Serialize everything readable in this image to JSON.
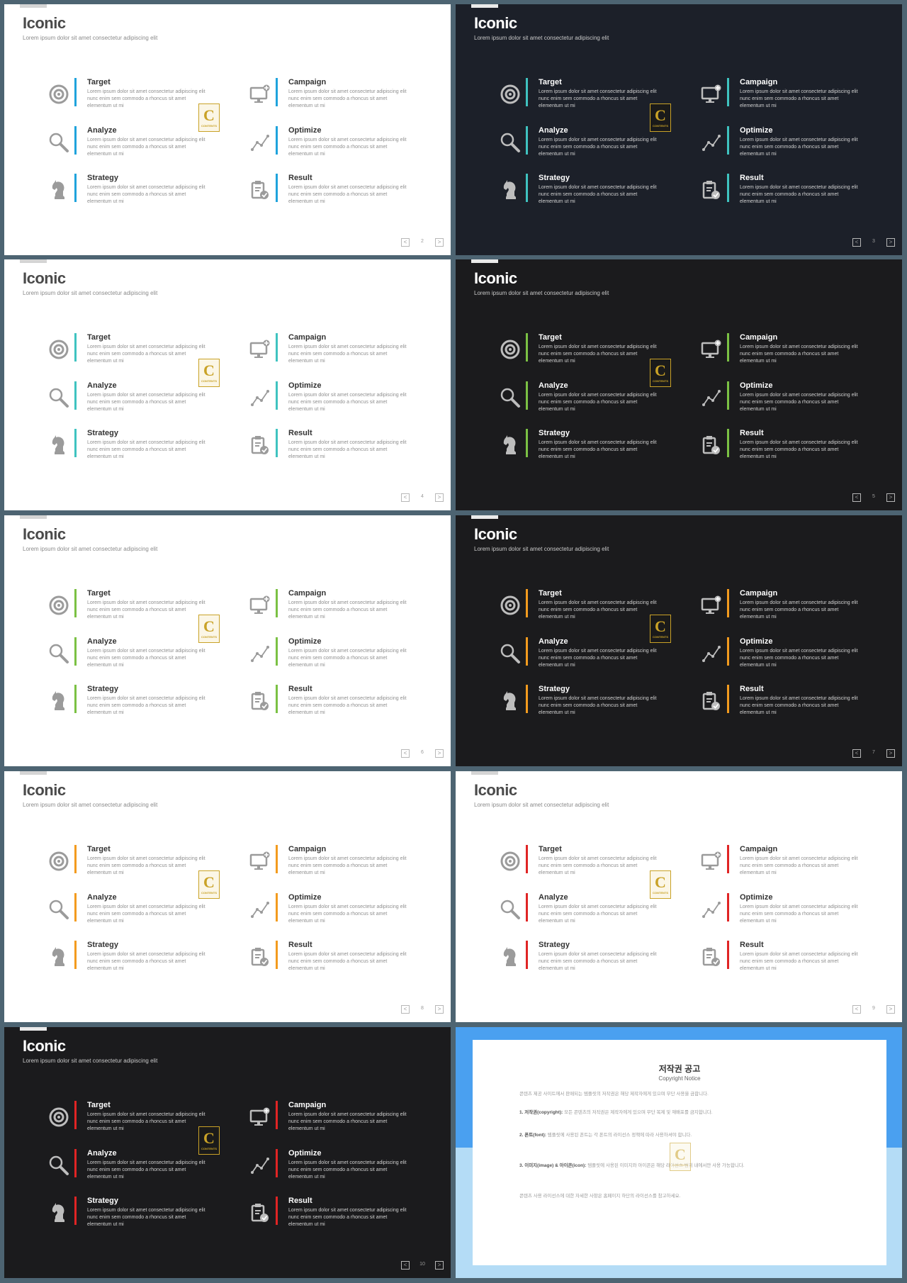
{
  "presentation": {
    "title": "Iconic",
    "subtitle": "Lorem ipsum dolor sit amet consectetur adipiscing elit"
  },
  "items": [
    {
      "key": "target",
      "title": "Target",
      "desc": "Lorem ipsum dolor sit amet consectetur adipiscing elit nunc enim sem commodo a rhoncus sit amet elementum ut mi",
      "icon": "target-icon"
    },
    {
      "key": "campaign",
      "title": "Campaign",
      "desc": "Lorem ipsum dolor sit amet consectetur adipiscing elit nunc enim sem commodo a rhoncus sit amet elementum ut mi",
      "icon": "monitor-plus-icon"
    },
    {
      "key": "analyze",
      "title": "Analyze",
      "desc": "Lorem ipsum dolor sit amet consectetur adipiscing elit nunc enim sem commodo a rhoncus sit amet elementum ut mi",
      "icon": "magnifier-icon"
    },
    {
      "key": "optimize",
      "title": "Optimize",
      "desc": "Lorem ipsum dolor sit amet consectetur adipiscing elit nunc enim sem commodo a rhoncus sit amet elementum ut mi",
      "icon": "trend-line-icon"
    },
    {
      "key": "strategy",
      "title": "Strategy",
      "desc": "Lorem ipsum dolor sit amet consectetur adipiscing elit nunc enim sem commodo a rhoncus sit amet elementum ut mi",
      "icon": "chess-knight-icon"
    },
    {
      "key": "result",
      "title": "Result",
      "desc": "Lorem ipsum dolor sit amet consectetur adipiscing elit nunc enim sem commodo a rhoncus sit amet elementum ut mi",
      "icon": "clipboard-check-icon"
    }
  ],
  "logo": {
    "letter": "C",
    "caption": "CONTENTS",
    "icon": "contents-logo-icon"
  },
  "nav": {
    "prev_glyph": "<",
    "next_glyph": ">"
  },
  "slides": [
    {
      "page": "2",
      "theme": "white",
      "accent": "#1fa3dc"
    },
    {
      "page": "3",
      "theme": "navy",
      "accent": "#3fc3c0"
    },
    {
      "page": "4",
      "theme": "white",
      "accent": "#3fc3c0"
    },
    {
      "page": "5",
      "theme": "black",
      "accent": "#7bc144"
    },
    {
      "page": "6",
      "theme": "white",
      "accent": "#7bc144"
    },
    {
      "page": "7",
      "theme": "black",
      "accent": "#f39b1e"
    },
    {
      "page": "8",
      "theme": "white",
      "accent": "#f39b1e"
    },
    {
      "page": "9",
      "theme": "white",
      "accent": "#e02424"
    },
    {
      "page": "10",
      "theme": "black",
      "accent": "#e02424"
    }
  ],
  "copyright": {
    "title": "저작권 공고",
    "subtitle": "Copyright Notice",
    "background_top": "#4aa0f0",
    "background_bottom": "#b4dcf6",
    "paragraphs": [
      {
        "head": "",
        "body": "콘텐츠 제공 사이트에서 판매되는 템플릿의 저작권은 해당 제작자에게 있으며 무단 사용을 금합니다."
      },
      {
        "head": "1. 저작권(copyright):",
        "body": "모든 콘텐츠의 저작권은 제작자에게 있으며 무단 복제 및 재배포를 금지합니다."
      },
      {
        "head": "2. 폰트(font):",
        "body": "템플릿에 사용된 폰트는 각 폰트의 라이선스 정책에 따라 사용하셔야 합니다."
      },
      {
        "head": "3. 이미지(image) & 아이콘(icon):",
        "body": "템플릿에 사용된 이미지와 아이콘은 해당 라이선스 범위 내에서만 사용 가능합니다."
      },
      {
        "head": "",
        "body": "콘텐츠 사용 라이선스에 대한 자세한 사항은 홈페이지 하단의 라이선스를 참고하세요."
      }
    ]
  }
}
